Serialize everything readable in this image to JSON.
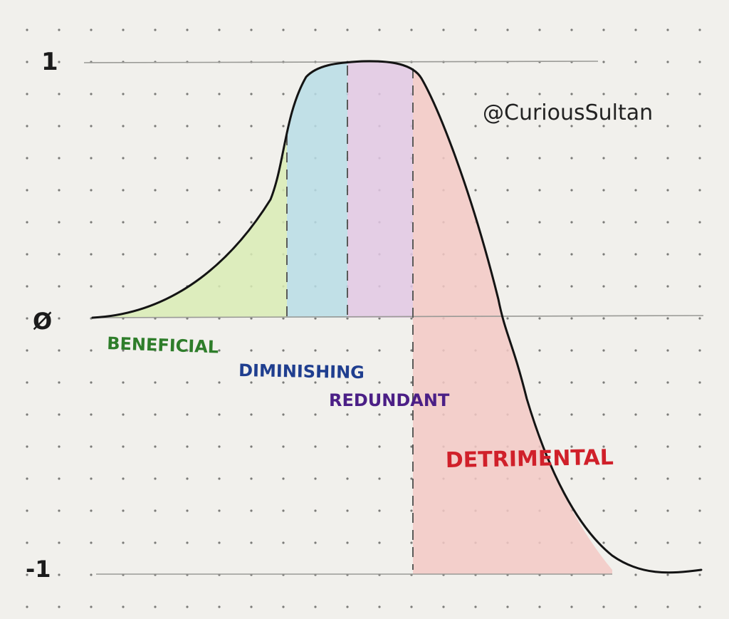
{
  "diagram": {
    "axis_labels": {
      "top": "1",
      "zero": "Ø",
      "bottom": "-1"
    },
    "credit": "@CuriousSultan",
    "zones": [
      {
        "label": "BENEFICIAL",
        "fill": "#d9ecb5",
        "text_color": "#2e7d2a"
      },
      {
        "label": "DIMINISHING",
        "fill": "#b9dde6",
        "text_color": "#1f3e8f"
      },
      {
        "label": "REDUNDANT",
        "fill": "#e2c8e4",
        "text_color": "#4b1f86"
      },
      {
        "label": "DETRIMENTAL",
        "fill": "#f3c9c5",
        "text_color": "#d0202a"
      }
    ],
    "colors": {
      "paper": "#f1f0ec",
      "dot": "#7b7b78",
      "guide": "#9a9a96",
      "curve": "#141414"
    }
  }
}
